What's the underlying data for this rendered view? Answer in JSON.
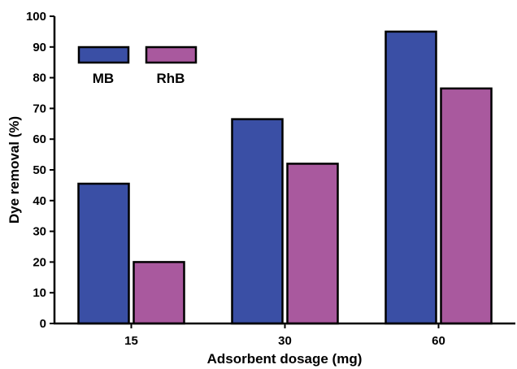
{
  "chart_data": {
    "type": "bar",
    "title": "",
    "xlabel": "Adsorbent dosage (mg)",
    "ylabel": "Dye removal (%)",
    "categories": [
      "15",
      "30",
      "60"
    ],
    "series": [
      {
        "name": "MB",
        "values": [
          45.5,
          66.5,
          95
        ],
        "color": "#3a4fa5"
      },
      {
        "name": "RhB",
        "values": [
          20,
          52,
          76.5
        ],
        "color": "#a9599e"
      }
    ],
    "ylim": [
      0,
      100
    ],
    "yticks": [
      0,
      10,
      20,
      30,
      40,
      50,
      60,
      70,
      80,
      90,
      100
    ],
    "grid": false,
    "legend_position": "top-left"
  }
}
